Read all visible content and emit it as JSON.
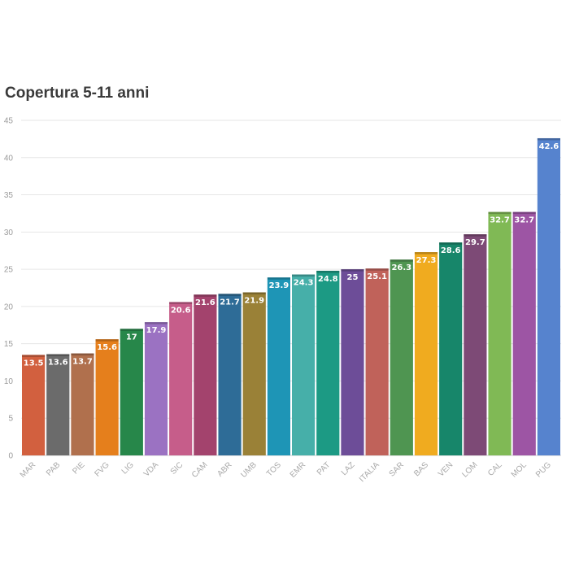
{
  "chart_data": {
    "type": "bar",
    "title": "Copertura 5-11 anni",
    "xlabel": "",
    "ylabel": "",
    "ylim": [
      0,
      45
    ],
    "yticks": [
      0,
      5,
      10,
      15,
      20,
      25,
      30,
      35,
      40,
      45
    ],
    "grid": true,
    "categories": [
      "MAR",
      "PAB",
      "PIE",
      "FVG",
      "LIG",
      "VDA",
      "SIC",
      "CAM",
      "ABR",
      "UMB",
      "TOS",
      "EMR",
      "PAT",
      "LAZ",
      "ITALIA",
      "SAR",
      "BAS",
      "VEN",
      "LOM",
      "CAL",
      "MOL",
      "PUG"
    ],
    "values": [
      13.5,
      13.6,
      13.7,
      15.6,
      17,
      17.9,
      20.6,
      21.6,
      21.7,
      21.9,
      23.9,
      24.3,
      24.8,
      25,
      25.1,
      26.3,
      27.3,
      28.6,
      29.7,
      32.7,
      32.7,
      42.6
    ],
    "colors": [
      "#d2603f",
      "#6b6b6b",
      "#b0704d",
      "#e57f1c",
      "#27874a",
      "#9b72c2",
      "#c65d8a",
      "#a3436d",
      "#2e6c97",
      "#9a8137",
      "#1e95b6",
      "#46afa9",
      "#1c9a84",
      "#6d4d98",
      "#c0625a",
      "#4f9551",
      "#f0ab1f",
      "#17866a",
      "#7d4a76",
      "#80b955",
      "#9d55a4",
      "#5683ce"
    ]
  }
}
